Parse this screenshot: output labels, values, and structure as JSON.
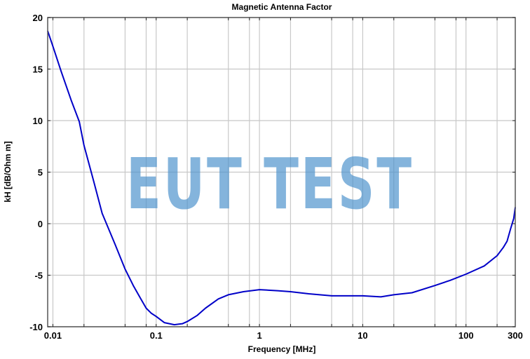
{
  "chart_data": {
    "type": "line",
    "title": "Magnetic Antenna Factor",
    "xlabel": "Frequency [MHz]",
    "ylabel": "kH [dB/Ohm m]",
    "xscale": "log",
    "xlim": [
      0.0089,
      300
    ],
    "ylim": [
      -10,
      20
    ],
    "x_ticks": [
      0.01,
      0.1,
      1,
      10,
      100,
      300
    ],
    "x_tick_labels": [
      "0.01",
      "0.1",
      "1",
      "10",
      "100",
      "300"
    ],
    "y_ticks": [
      -10,
      -5,
      0,
      5,
      10,
      15,
      20
    ],
    "y_tick_labels": [
      "-10",
      "-5",
      "0",
      "5",
      "10",
      "15",
      "20"
    ],
    "grid": true,
    "legend": null,
    "series": [
      {
        "name": "Magnetic Antenna Factor",
        "color": "#0000c8",
        "x": [
          0.0089,
          0.01,
          0.012,
          0.015,
          0.018,
          0.02,
          0.025,
          0.03,
          0.04,
          0.05,
          0.06,
          0.07,
          0.08,
          0.09,
          0.1,
          0.12,
          0.15,
          0.18,
          0.2,
          0.25,
          0.3,
          0.4,
          0.5,
          0.7,
          1,
          1.5,
          2,
          3,
          5,
          7,
          10,
          15,
          20,
          30,
          50,
          70,
          100,
          150,
          200,
          230,
          250,
          270,
          290,
          300
        ],
        "y": [
          18.7,
          17.2,
          14.8,
          12.0,
          9.9,
          7.6,
          4.0,
          1.0,
          -2.0,
          -4.4,
          -6.0,
          -7.2,
          -8.2,
          -8.7,
          -9.0,
          -9.6,
          -9.8,
          -9.7,
          -9.5,
          -8.9,
          -8.2,
          -7.3,
          -6.9,
          -6.6,
          -6.4,
          -6.5,
          -6.6,
          -6.8,
          -7.0,
          -7.0,
          -7.0,
          -7.1,
          -6.9,
          -6.7,
          -6.0,
          -5.5,
          -4.9,
          -4.1,
          -3.1,
          -2.3,
          -1.7,
          -0.5,
          0.5,
          1.6
        ]
      }
    ],
    "annotations": [
      "EUT TEST (watermark)"
    ]
  },
  "watermark": {
    "text": "EUT TEST",
    "color": "#4a90cb"
  },
  "colors": {
    "line": "#0000c8",
    "grid": "#c8c8c8",
    "axis": "#555555"
  }
}
